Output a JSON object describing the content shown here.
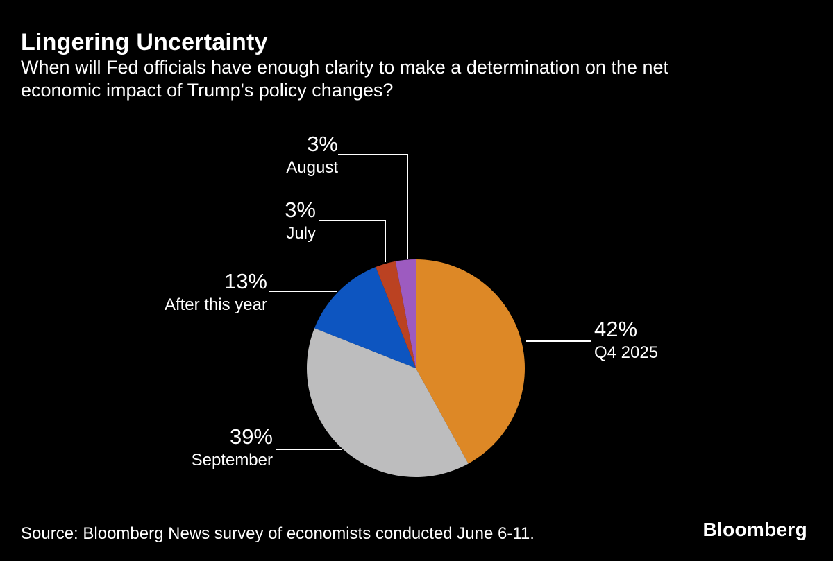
{
  "header": {
    "title": "Lingering Uncertainty",
    "subtitle_lines": [
      "When will Fed officials have enough clarity to make a determination on the net",
      "economic impact of Trump's policy changes?"
    ]
  },
  "chart_data": {
    "type": "pie",
    "title": "Lingering Uncertainty",
    "question": "When will Fed officials have enough clarity to make a determination on the net economic impact of Trump's policy changes?",
    "unit": "%",
    "start_angle_deg": 0,
    "direction": "clockwise",
    "legend_position": "none",
    "labels_style": "outside-with-leader-lines",
    "segments": [
      {
        "label": "Q4 2025",
        "value": 42,
        "color": "#DD8826"
      },
      {
        "label": "September",
        "value": 39,
        "color": "#BDBDBE"
      },
      {
        "label": "After this year",
        "value": 13,
        "color": "#0D55C0"
      },
      {
        "label": "July",
        "value": 3,
        "color": "#BB4222"
      },
      {
        "label": "August",
        "value": 3,
        "color": "#9D5BC0"
      }
    ]
  },
  "footer": {
    "source": "Source: Bloomberg News survey of economists conducted June 6-11.",
    "brand": "Bloomberg"
  },
  "colors": {
    "background": "#000000",
    "text": "#FFFFFF",
    "leader_line": "#FFFFFF"
  }
}
